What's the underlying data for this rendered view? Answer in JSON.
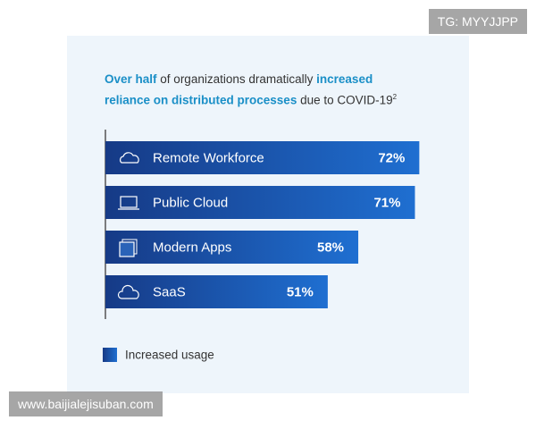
{
  "chart_data": {
    "type": "bar",
    "title": [
      "Over half",
      "of organizations dramatically",
      "increased",
      "reliance on distributed processes",
      "due to COVID-19",
      "2"
    ],
    "categories": [
      "Remote Workforce",
      "Public Cloud",
      "Modern Apps",
      "SaaS"
    ],
    "series": [
      {
        "name": "Increased usage",
        "color": "#1f6fd1",
        "values": [
          72,
          71,
          58,
          51
        ],
        "value_labels": [
          "72%",
          "71%",
          "58%",
          "51%"
        ]
      }
    ]
  },
  "watermarks": [
    "TG: MYYJJPP",
    "www.baijialejisuban.com"
  ]
}
